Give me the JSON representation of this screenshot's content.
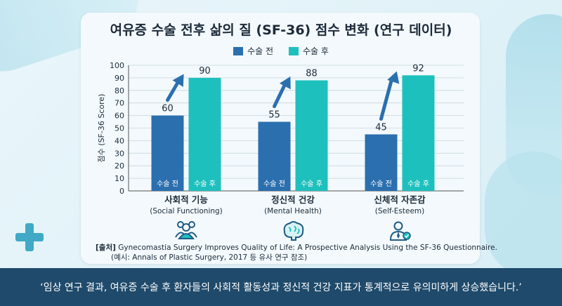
{
  "page": {
    "title": "여유증 수술 전후 삶의 질 (SF-36) 점수 변화 (연구 데이터)",
    "source_prefix": "[출처]",
    "source_line1": "Gynecomastia Surgery Improves Quality of Life: A Prospective Analysis Using the SF-36 Questionnaire.",
    "source_line2": "(예시: Annals of Plastic Surgery, 2017 등 유사 연구 참조)",
    "footer": "‘임상 연구 결과, 여유증 수술 후 환자들의 사회적 활동성과 정신적 건강 지표가 통계적으로 유의미하게 상승했습니다.’",
    "legend": [
      {
        "label": "수술 전",
        "color": "#2b6fae"
      },
      {
        "label": "수술 후",
        "color": "#1ec0bd"
      }
    ],
    "icons": [
      "people-group-icon",
      "brain-icon",
      "person-badge-icon"
    ]
  },
  "chart_data": {
    "type": "bar",
    "title": "여유증 수술 전후 삶의 질 (SF-36) 점수 변화 (연구 데이터)",
    "ylabel": "점수 (SF-36 Score)",
    "ylim": [
      0,
      100
    ],
    "yticks": [
      0,
      10,
      20,
      30,
      40,
      50,
      60,
      70,
      80,
      90,
      100
    ],
    "grid": true,
    "legend_position": "top",
    "categories": [
      "사회적 기능",
      "정신적 건강",
      "신체적 자존감"
    ],
    "category_sublabels": [
      "(Social Functioning)",
      "(Mental Health)",
      "(Self-Esteem)"
    ],
    "series": [
      {
        "name": "수술 전",
        "color": "#2b6fae",
        "values": [
          60,
          55,
          45
        ],
        "bar_label": "수술 전"
      },
      {
        "name": "수술 후",
        "color": "#1ec0bd",
        "values": [
          90,
          88,
          92
        ],
        "bar_label": "수술 후"
      }
    ]
  }
}
